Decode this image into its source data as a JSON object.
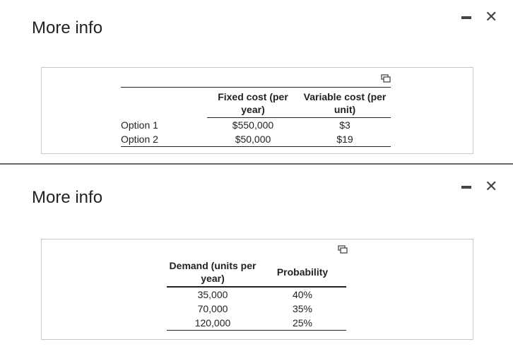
{
  "panel1": {
    "title": "More info",
    "table": {
      "headers": [
        "",
        "Fixed cost (per year)",
        "Variable cost (per unit)"
      ],
      "rows": [
        {
          "label": "Option 1",
          "fixed": "$550,000",
          "variable": "$3"
        },
        {
          "label": "Option 2",
          "fixed": "$50,000",
          "variable": "$19"
        }
      ]
    }
  },
  "panel2": {
    "title": "More info",
    "table": {
      "headers": [
        "Demand (units per year)",
        "Probability"
      ],
      "rows": [
        {
          "demand": "35,000",
          "probability": "40%"
        },
        {
          "demand": "70,000",
          "probability": "35%"
        },
        {
          "demand": "120,000",
          "probability": "25%"
        }
      ]
    }
  },
  "icons": {
    "minimize": "minimize-icon",
    "close": "close-icon",
    "copy": "copy-icon"
  },
  "close_glyph": "✕"
}
